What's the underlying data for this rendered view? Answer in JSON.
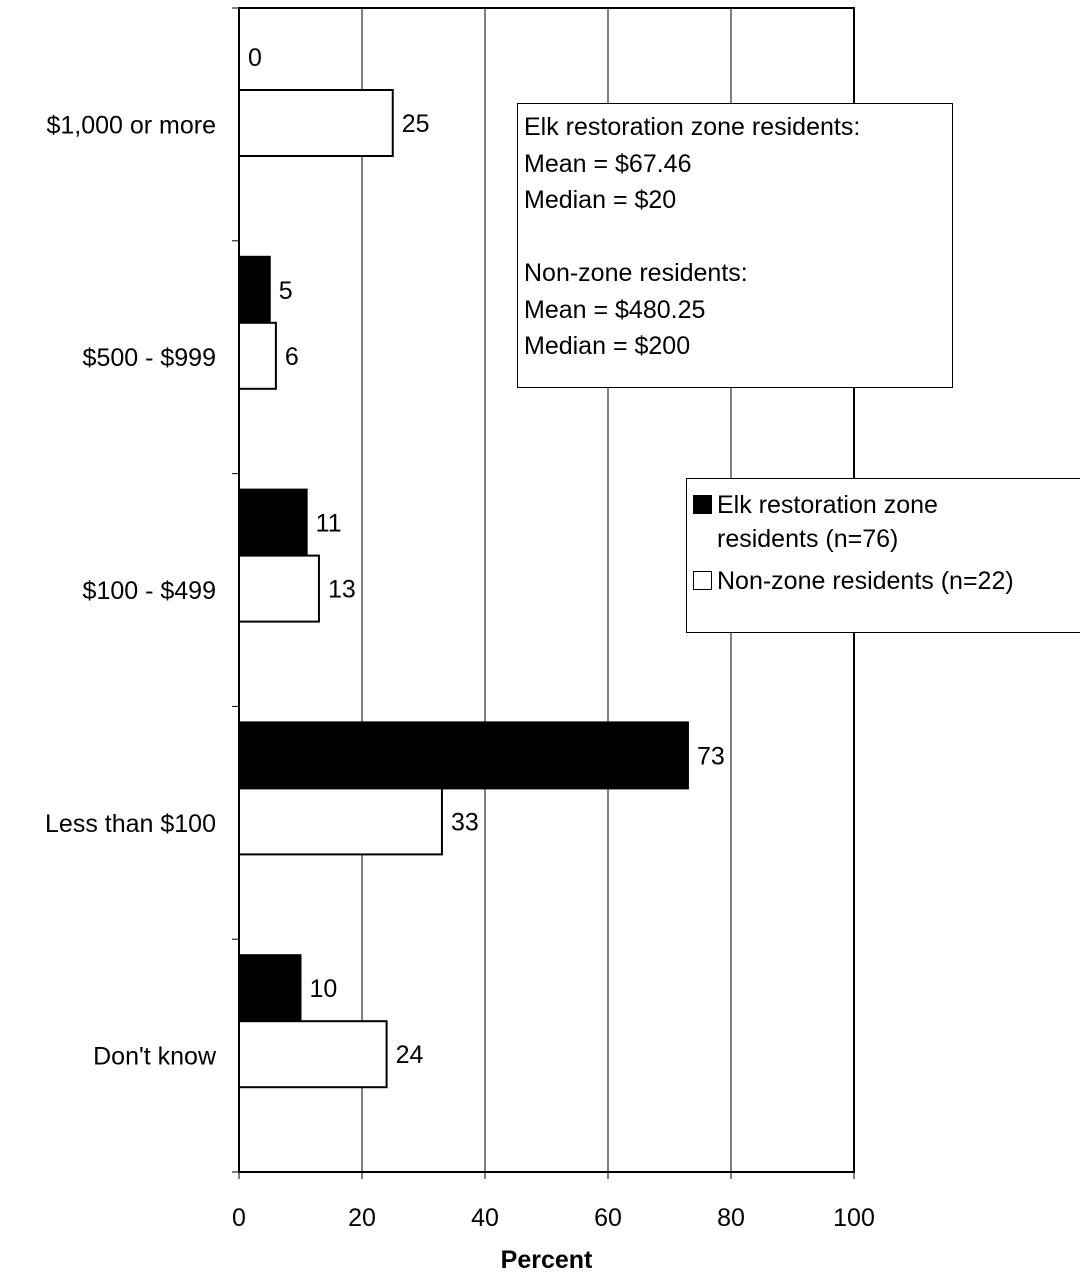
{
  "chart_data": {
    "type": "bar",
    "orientation": "horizontal",
    "categories": [
      "$1,000 or more",
      "$500 - $999",
      "$100 - $499",
      "Less than $100",
      "Don't know"
    ],
    "series": [
      {
        "name": "Elk restoration zone residents (n=76)",
        "color": "#000000",
        "values": [
          0,
          5,
          11,
          73,
          10
        ]
      },
      {
        "name": "Non-zone residents (n=22)",
        "color": "#ffffff",
        "values": [
          25,
          6,
          13,
          33,
          24
        ]
      }
    ],
    "xlabel": "Percent",
    "xlim": [
      0,
      100
    ],
    "xticks": [
      0,
      20,
      40,
      60,
      80,
      100
    ],
    "grid": "vertical",
    "legend_position": "right",
    "legend": [
      {
        "lines": [
          "Elk restoration zone",
          "residents (n=76)"
        ],
        "swatch": "#000000"
      },
      {
        "lines": [
          "Non-zone residents (n=22)"
        ],
        "swatch": "#ffffff"
      }
    ],
    "annotation": {
      "lines": [
        "Elk restoration zone residents:",
        "Mean = $67.46",
        "Median = $20",
        "",
        "Non-zone residents:",
        "Mean = $480.25",
        "Median = $200"
      ]
    }
  }
}
